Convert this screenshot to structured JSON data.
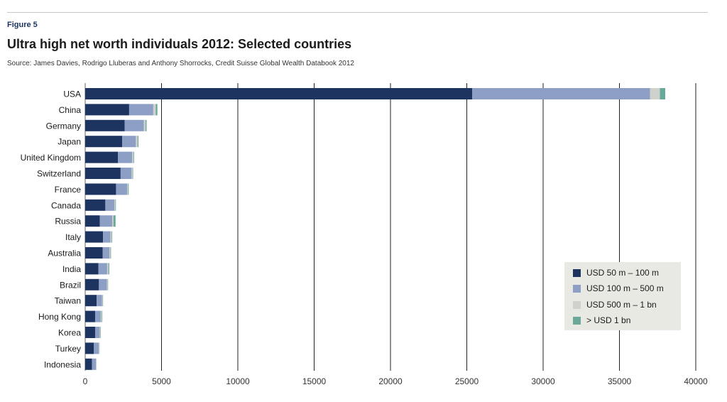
{
  "header": {
    "figure_label": "Figure 5",
    "title": "Ultra high net worth individuals 2012: Selected countries",
    "source": "Source: James Davies, Rodrigo Lluberas and Anthony Shorrocks, Credit Suisse Global Wealth Databook 2012"
  },
  "colors": {
    "series": [
      "#1d3461",
      "#8e9fc5",
      "#cfd1cc",
      "#6aa99a"
    ],
    "gridline": "#222222"
  },
  "chart_data": {
    "type": "bar",
    "orientation": "horizontal",
    "stacked": true,
    "title": "Ultra high net worth individuals 2012: Selected countries",
    "xlabel": "",
    "ylabel": "",
    "xlim": [
      0,
      40000
    ],
    "xticks": [
      0,
      5000,
      10000,
      15000,
      20000,
      25000,
      30000,
      35000,
      40000
    ],
    "grid": "vertical",
    "legend_position": "bottom-right",
    "categories": [
      "USA",
      "China",
      "Germany",
      "Japan",
      "United Kingdom",
      "Switzerland",
      "France",
      "Canada",
      "Russia",
      "Italy",
      "Australia",
      "India",
      "Brazil",
      "Taiwan",
      "Hong Kong",
      "Korea",
      "Turkey",
      "Indonesia"
    ],
    "series": [
      {
        "name": "USD 50 m – 100 m",
        "values": [
          25350,
          2880,
          2590,
          2420,
          2150,
          2320,
          2020,
          1320,
          960,
          1170,
          1150,
          860,
          900,
          750,
          650,
          650,
          570,
          440
        ]
      },
      {
        "name": "USD 100 m – 500 m",
        "values": [
          11650,
          1580,
          1250,
          900,
          920,
          720,
          730,
          590,
          820,
          480,
          440,
          580,
          520,
          350,
          370,
          300,
          320,
          270
        ]
      },
      {
        "name": "USD 500 m – 1 bn",
        "values": [
          650,
          160,
          110,
          110,
          80,
          60,
          50,
          60,
          70,
          80,
          60,
          80,
          50,
          40,
          60,
          40,
          30,
          20
        ]
      },
      {
        "name": "> USD 1 bn",
        "values": [
          350,
          110,
          70,
          60,
          50,
          40,
          50,
          40,
          140,
          40,
          40,
          60,
          30,
          30,
          40,
          30,
          20,
          10
        ]
      }
    ]
  }
}
